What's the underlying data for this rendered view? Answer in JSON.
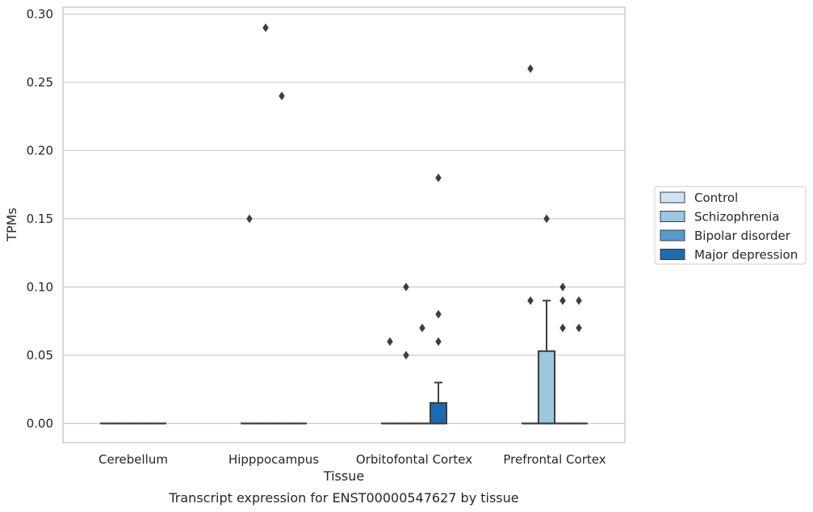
{
  "chart_data": {
    "type": "box",
    "xlabel": "Tissue",
    "ylabel": "TPMs",
    "caption": "Transcript expression for ENST00000547627 by tissue",
    "ylim": [
      -0.014,
      0.305
    ],
    "yticks": [
      0.0,
      0.05,
      0.1,
      0.15,
      0.2,
      0.25,
      0.3
    ],
    "ytick_labels": [
      "0.00",
      "0.05",
      "0.10",
      "0.15",
      "0.20",
      "0.25",
      "0.30"
    ],
    "grid": "horizontal",
    "legend_position": "right",
    "categories": [
      "Cerebellum",
      "Hipppocampus",
      "Orbitofontal Cortex",
      "Prefrontal Cortex"
    ],
    "series": [
      {
        "name": "Control",
        "color": "#d2e3f3"
      },
      {
        "name": "Schizophrenia",
        "color": "#9ac8e0"
      },
      {
        "name": "Bipolar disorder",
        "color": "#529dcc"
      },
      {
        "name": "Major depression",
        "color": "#1c6aaf"
      }
    ],
    "boxes": [
      {
        "category": "Cerebellum",
        "series": "Control",
        "q1": 0,
        "median": 0,
        "q3": 0,
        "whisker_low": 0,
        "whisker_high": 0,
        "outliers": []
      },
      {
        "category": "Cerebellum",
        "series": "Schizophrenia",
        "q1": 0,
        "median": 0,
        "q3": 0,
        "whisker_low": 0,
        "whisker_high": 0,
        "outliers": []
      },
      {
        "category": "Cerebellum",
        "series": "Bipolar disorder",
        "q1": 0,
        "median": 0,
        "q3": 0,
        "whisker_low": 0,
        "whisker_high": 0,
        "outliers": []
      },
      {
        "category": "Cerebellum",
        "series": "Major depression",
        "q1": 0,
        "median": 0,
        "q3": 0,
        "whisker_low": 0,
        "whisker_high": 0,
        "outliers": []
      },
      {
        "category": "Hipppocampus",
        "series": "Control",
        "q1": 0,
        "median": 0,
        "q3": 0,
        "whisker_low": 0,
        "whisker_high": 0,
        "outliers": [
          0.15
        ]
      },
      {
        "category": "Hipppocampus",
        "series": "Schizophrenia",
        "q1": 0,
        "median": 0,
        "q3": 0,
        "whisker_low": 0,
        "whisker_high": 0,
        "outliers": [
          0.29
        ]
      },
      {
        "category": "Hipppocampus",
        "series": "Bipolar disorder",
        "q1": 0,
        "median": 0,
        "q3": 0,
        "whisker_low": 0,
        "whisker_high": 0,
        "outliers": [
          0.24
        ]
      },
      {
        "category": "Hipppocampus",
        "series": "Major depression",
        "q1": 0,
        "median": 0,
        "q3": 0,
        "whisker_low": 0,
        "whisker_high": 0,
        "outliers": []
      },
      {
        "category": "Orbitofontal Cortex",
        "series": "Control",
        "q1": 0,
        "median": 0,
        "q3": 0,
        "whisker_low": 0,
        "whisker_high": 0,
        "outliers": [
          0.06
        ]
      },
      {
        "category": "Orbitofontal Cortex",
        "series": "Schizophrenia",
        "q1": 0,
        "median": 0,
        "q3": 0,
        "whisker_low": 0,
        "whisker_high": 0,
        "outliers": [
          0.1,
          0.05
        ]
      },
      {
        "category": "Orbitofontal Cortex",
        "series": "Bipolar disorder",
        "q1": 0,
        "median": 0,
        "q3": 0,
        "whisker_low": 0,
        "whisker_high": 0,
        "outliers": [
          0.07
        ]
      },
      {
        "category": "Orbitofontal Cortex",
        "series": "Major depression",
        "q1": 0,
        "median": 0,
        "q3": 0.015,
        "whisker_low": 0,
        "whisker_high": 0.03,
        "outliers": [
          0.18,
          0.08,
          0.06
        ]
      },
      {
        "category": "Prefrontal Cortex",
        "series": "Control",
        "q1": 0,
        "median": 0,
        "q3": 0,
        "whisker_low": 0,
        "whisker_high": 0,
        "outliers": [
          0.26,
          0.09
        ]
      },
      {
        "category": "Prefrontal Cortex",
        "series": "Schizophrenia",
        "q1": 0,
        "median": 0,
        "q3": 0.053,
        "whisker_low": 0,
        "whisker_high": 0.09,
        "outliers": [
          0.15
        ]
      },
      {
        "category": "Prefrontal Cortex",
        "series": "Bipolar disorder",
        "q1": 0,
        "median": 0,
        "q3": 0,
        "whisker_low": 0,
        "whisker_high": 0,
        "outliers": [
          0.1,
          0.09,
          0.07
        ]
      },
      {
        "category": "Prefrontal Cortex",
        "series": "Major depression",
        "q1": 0,
        "median": 0,
        "q3": 0,
        "whisker_low": 0,
        "whisker_high": 0,
        "outliers": [
          0.09,
          0.07
        ]
      }
    ]
  }
}
